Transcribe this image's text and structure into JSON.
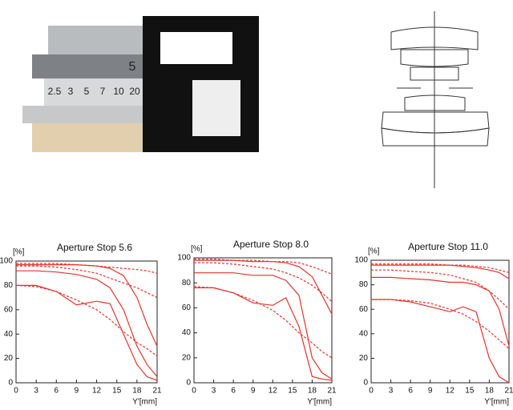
{
  "lens_photo": {
    "aperture_mark": "5",
    "distance_scale": [
      "2.5",
      "3",
      "5",
      "7",
      "10",
      "20"
    ]
  },
  "chart_data": [
    {
      "type": "line",
      "title": "Aperture Stop 5.6",
      "ylabel": "[%]",
      "xlabel": "Y'[mm]",
      "x": [
        0,
        3,
        6,
        9,
        12,
        14,
        16,
        18,
        19.5,
        21
      ],
      "xlim": [
        0,
        21
      ],
      "xticks": [
        0,
        3,
        6,
        9,
        12,
        15,
        18,
        21
      ],
      "ylim": [
        0,
        100
      ],
      "yticks": [
        0,
        20,
        40,
        60,
        80,
        100
      ],
      "series": [
        {
          "color": "#e8322b",
          "dashed": false,
          "values": [
            97,
            97,
            97,
            97,
            96,
            94,
            88,
            70,
            48,
            30
          ]
        },
        {
          "color": "#e8322b",
          "dashed": true,
          "values": [
            98,
            98,
            98,
            97,
            96,
            95,
            94,
            93,
            92,
            90
          ]
        },
        {
          "color": "#e8322b",
          "dashed": true,
          "values": [
            96,
            96,
            95,
            93,
            90,
            86,
            82,
            78,
            74,
            70
          ]
        },
        {
          "color": "#e8322b",
          "dashed": false,
          "values": [
            92,
            92,
            91,
            89,
            85,
            78,
            60,
            30,
            15,
            5
          ]
        },
        {
          "color": "#e8322b",
          "dashed": false,
          "values": [
            80,
            80,
            75,
            64,
            67,
            65,
            40,
            15,
            5,
            2
          ]
        },
        {
          "color": "#e8322b",
          "dashed": true,
          "values": [
            80,
            79,
            75,
            68,
            60,
            52,
            42,
            33,
            28,
            22
          ]
        }
      ]
    },
    {
      "type": "line",
      "title": "Aperture Stop 8.0",
      "ylabel": "[%]",
      "xlabel": "Y'[mm]",
      "x": [
        0,
        3,
        6,
        9,
        12,
        14,
        16,
        18,
        19.5,
        21
      ],
      "xlim": [
        0,
        21
      ],
      "xticks": [
        0,
        3,
        6,
        9,
        12,
        15,
        18,
        21
      ],
      "ylim": [
        0,
        100
      ],
      "yticks": [
        0,
        20,
        40,
        60,
        80,
        100
      ],
      "series": [
        {
          "color": "#e8322b",
          "dashed": false,
          "values": [
            98,
            98,
            98,
            97,
            97,
            96,
            93,
            85,
            70,
            55
          ]
        },
        {
          "color": "#e8322b",
          "dashed": true,
          "values": [
            99,
            99,
            98,
            98,
            97,
            97,
            96,
            93,
            90,
            87
          ]
        },
        {
          "color": "#e8322b",
          "dashed": true,
          "values": [
            96,
            96,
            95,
            93,
            91,
            88,
            84,
            78,
            72,
            65
          ]
        },
        {
          "color": "#e8322b",
          "dashed": false,
          "values": [
            88,
            88,
            88,
            86,
            86,
            82,
            70,
            20,
            8,
            3
          ]
        },
        {
          "color": "#e8322b",
          "dashed": false,
          "values": [
            76,
            76,
            72,
            64,
            62,
            68,
            45,
            5,
            3,
            2
          ]
        },
        {
          "color": "#e8322b",
          "dashed": true,
          "values": [
            77,
            76,
            72,
            66,
            58,
            50,
            40,
            32,
            25,
            20
          ]
        }
      ]
    },
    {
      "type": "line",
      "title": "Aperture Stop 11.0",
      "ylabel": "[%]",
      "xlabel": "Y'[mm]",
      "x": [
        0,
        3,
        6,
        9,
        12,
        14,
        16,
        18,
        19.5,
        21
      ],
      "xlim": [
        0,
        21
      ],
      "xticks": [
        0,
        3,
        6,
        9,
        12,
        15,
        18,
        21
      ],
      "ylim": [
        0,
        100
      ],
      "yticks": [
        0,
        20,
        40,
        60,
        80,
        100
      ],
      "series": [
        {
          "color": "#e8322b",
          "dashed": false,
          "values": [
            96,
            96,
            96,
            96,
            96,
            95,
            94,
            92,
            90,
            85
          ]
        },
        {
          "color": "#e8322b",
          "dashed": true,
          "values": [
            97,
            97,
            97,
            97,
            96,
            96,
            95,
            94,
            92,
            90
          ]
        },
        {
          "color": "#e8322b",
          "dashed": true,
          "values": [
            92,
            92,
            91,
            90,
            88,
            85,
            82,
            75,
            68,
            60
          ]
        },
        {
          "color": "#e8322b",
          "dashed": false,
          "values": [
            86,
            86,
            85,
            84,
            82,
            82,
            80,
            75,
            60,
            30
          ]
        },
        {
          "color": "#e8322b",
          "dashed": false,
          "values": [
            68,
            68,
            66,
            62,
            58,
            62,
            58,
            20,
            5,
            0
          ]
        },
        {
          "color": "#e8322b",
          "dashed": true,
          "values": [
            68,
            68,
            67,
            65,
            60,
            56,
            50,
            42,
            35,
            28
          ]
        }
      ]
    }
  ]
}
